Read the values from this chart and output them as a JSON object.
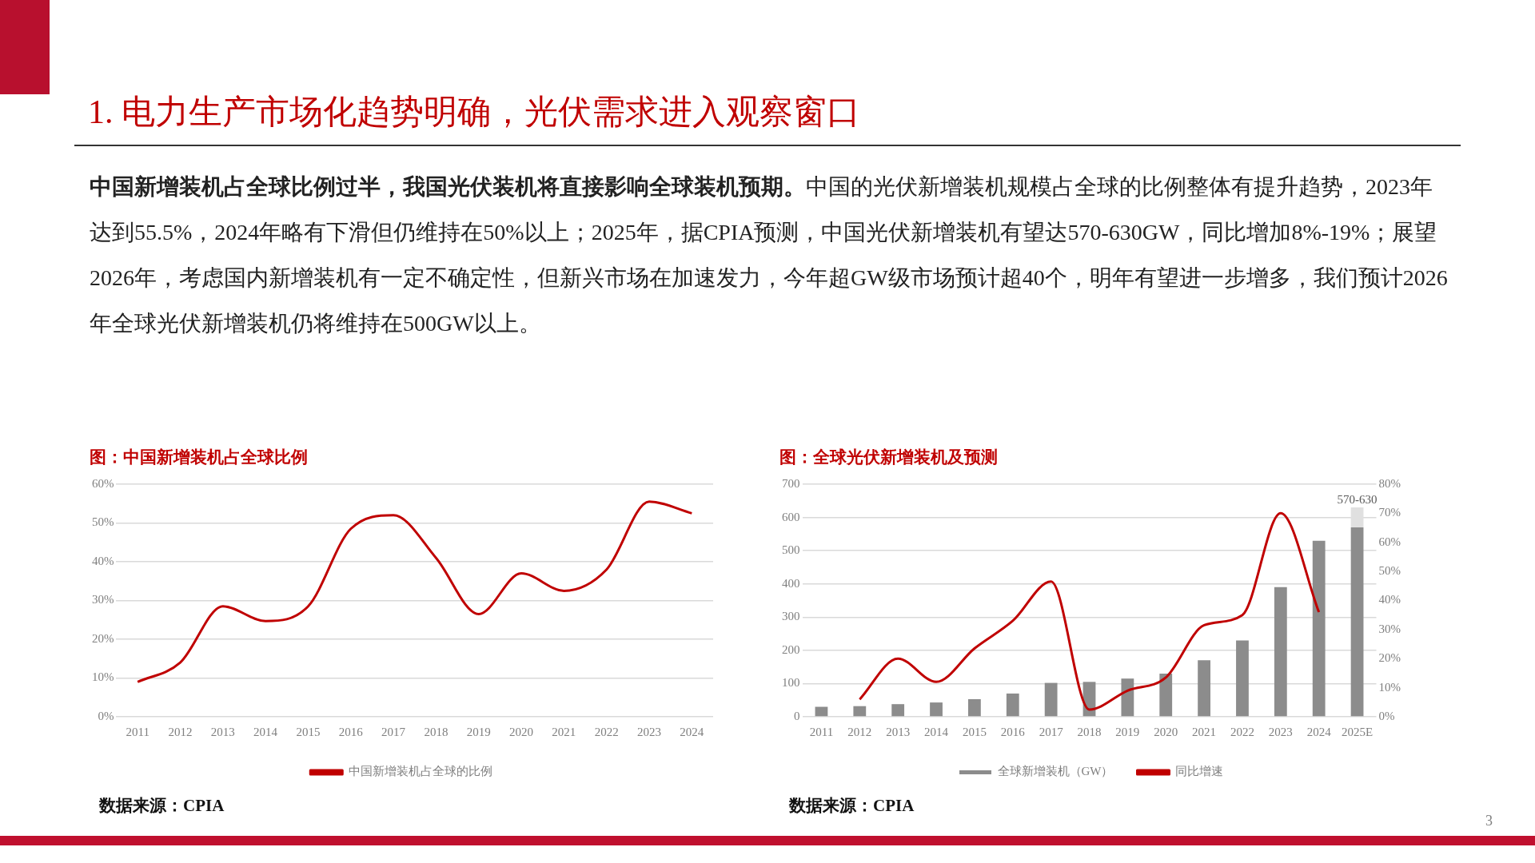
{
  "chart_data": [
    {
      "type": "line",
      "title": "图：中国新增装机占全球比例",
      "categories": [
        "2011",
        "2012",
        "2013",
        "2014",
        "2015",
        "2016",
        "2017",
        "2018",
        "2019",
        "2020",
        "2021",
        "2022",
        "2023",
        "2024"
      ],
      "series": [
        {
          "name": "中国新增装机占全球的比例",
          "color": "#c00000",
          "values": [
            9,
            14,
            28.5,
            24.7,
            28.5,
            48.5,
            52,
            41,
            26.5,
            37,
            32.5,
            38,
            55.5,
            52.5
          ]
        }
      ],
      "ylim": [
        0,
        60
      ],
      "yticks": [
        {
          "value": 0,
          "label": "0%"
        },
        {
          "value": 10,
          "label": "10%"
        },
        {
          "value": 20,
          "label": "20%"
        },
        {
          "value": 30,
          "label": "30%"
        },
        {
          "value": 40,
          "label": "40%"
        },
        {
          "value": 50,
          "label": "50%"
        },
        {
          "value": 60,
          "label": "60%"
        }
      ],
      "grid": "y",
      "legend": "bottom",
      "marker": "none",
      "annotations": [
        "1. 电力生产市场化趋势明确，光伏需求进入观察窗口",
        "中国新增装机占全球比例过半，我国光伏装机将直接影响全球装机预期。",
        "中国的光伏新增装机规模占全球的比例整体有提升趋势，2023年达到55.5%，2024年略有下滑但仍维持在50%以上；2025年，据CPIA预测，中国光伏新增装机有望达570-630GW，同比增加8%-19%；展望2026年，考虑国内新增装机有一定不确定性，但新兴市场在加速发力，今年超GW级市场预计超40个，明年有望进一步增多，我们预计2026年全球光伏新增装机仍将维持在500GW以上。",
        "数据来源：CPIA"
      ]
    },
    {
      "type": "bar",
      "title": "图：全球光伏新增装机及预测",
      "categories": [
        "2011",
        "2012",
        "2013",
        "2014",
        "2015",
        "2016",
        "2017",
        "2018",
        "2019",
        "2020",
        "2021",
        "2022",
        "2023",
        "2024",
        "2025E"
      ],
      "series": [
        {
          "name": "全球新增装机（GW）",
          "color": "#8c8c8c",
          "values": [
            30,
            32,
            38,
            43,
            53,
            70,
            102,
            105,
            115,
            130,
            170,
            230,
            390,
            530,
            570
          ]
        },
        {
          "color": "#e0e0e0",
          "values": [
            null,
            null,
            null,
            null,
            null,
            null,
            null,
            null,
            null,
            null,
            null,
            null,
            null,
            null,
            60
          ]
        },
        {
          "name": "同比增速",
          "type": "line",
          "axis": "y2",
          "color": "#c00000",
          "values": [
            null,
            6,
            20,
            12,
            23.5,
            33,
            46.5,
            2.5,
            9,
            13.5,
            31.5,
            35,
            70,
            36,
            null
          ]
        }
      ],
      "stacked": true,
      "ylim": [
        0,
        700
      ],
      "yticks": [
        0,
        100,
        200,
        300,
        400,
        500,
        600,
        700
      ],
      "y2lim": [
        0,
        80
      ],
      "y2ticks": [
        {
          "value": 0,
          "label": "0%"
        },
        {
          "value": 10,
          "label": "10%"
        },
        {
          "value": 20,
          "label": "20%"
        },
        {
          "value": 30,
          "label": "30%"
        },
        {
          "value": 40,
          "label": "40%"
        },
        {
          "value": 50,
          "label": "50%"
        },
        {
          "value": 60,
          "label": "60%"
        },
        {
          "value": 70,
          "label": "70%"
        },
        {
          "value": 80,
          "label": "80%"
        }
      ],
      "grid": "y",
      "legend": "bottom",
      "marker": "none",
      "annotations": [
        {
          "text": "570-630",
          "x": "2025E",
          "y": 630
        },
        "数据来源：CPIA",
        "3"
      ]
    }
  ]
}
